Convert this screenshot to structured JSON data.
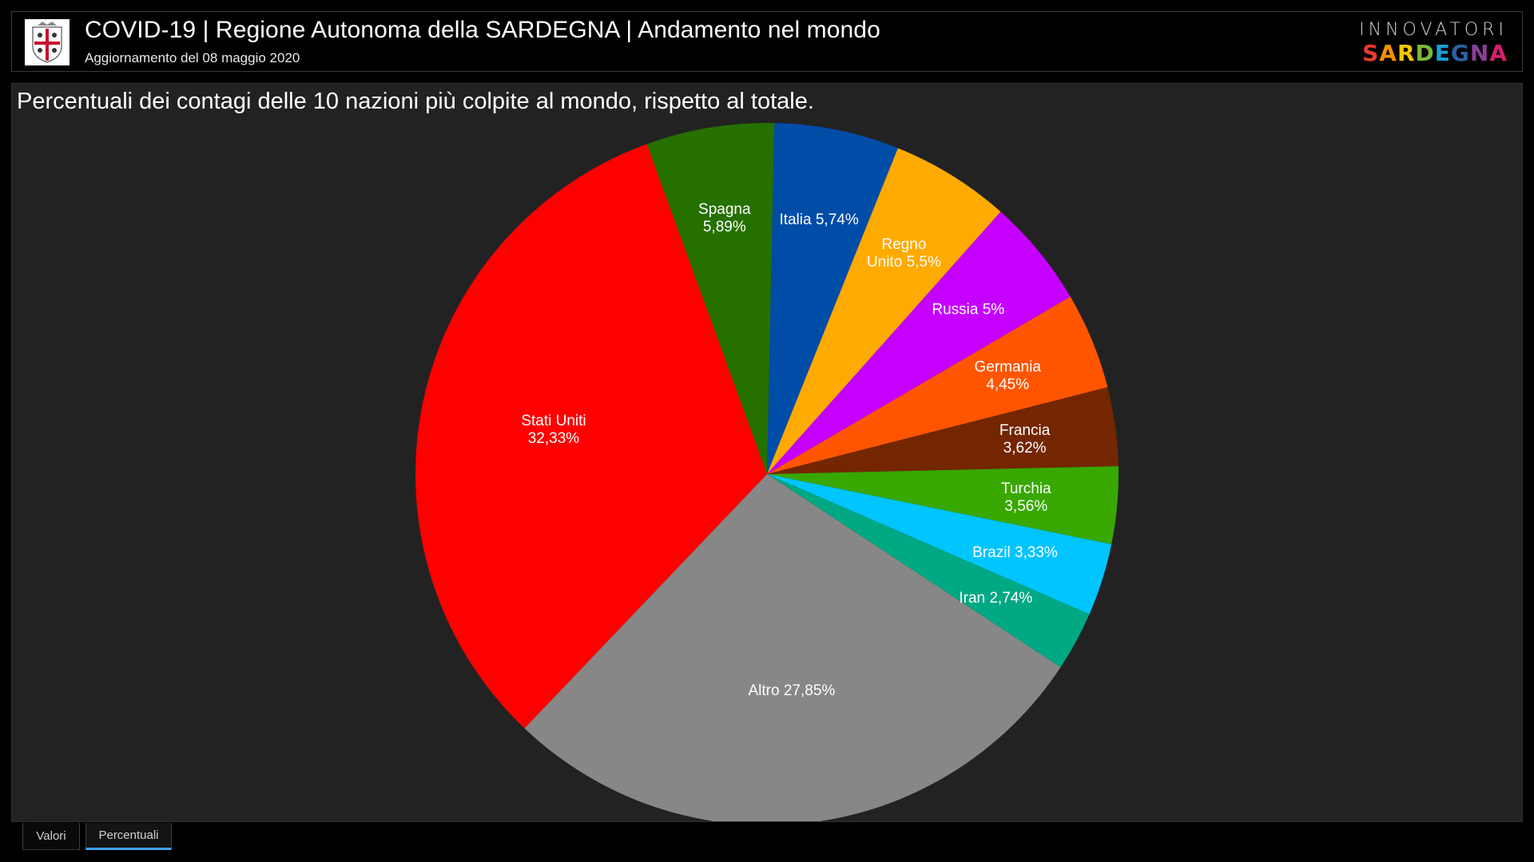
{
  "header": {
    "title": "COVID-19 | Regione Autonoma della SARDEGNA | Andamento nel mondo",
    "subtitle": "Aggiornamento del 08 maggio 2020",
    "logo_top": "INNOVATORI",
    "logo_bottom_letters": [
      {
        "ch": "S",
        "color": "#e63b2e"
      },
      {
        "ch": "A",
        "color": "#f39200"
      },
      {
        "ch": "R",
        "color": "#f2c500"
      },
      {
        "ch": "D",
        "color": "#7bb83b"
      },
      {
        "ch": "E",
        "color": "#1a9fd9"
      },
      {
        "ch": "G",
        "color": "#2c5fa8"
      },
      {
        "ch": "N",
        "color": "#8a3f97"
      },
      {
        "ch": "A",
        "color": "#d6206f"
      }
    ]
  },
  "panel": {
    "title": "Percentuali dei contagi delle 10 nazioni più colpite al mondo, rispetto al totale."
  },
  "chart_data": {
    "type": "pie",
    "title": "Percentuali dei contagi delle 10 nazioni più colpite al mondo, rispetto al totale.",
    "unit": "%",
    "start_angle_deg": -20,
    "direction": "clockwise",
    "slices": [
      {
        "name": "Spagna",
        "value": 5.89,
        "label_lines": [
          "Spagna",
          "5,89%"
        ],
        "color": "#267000"
      },
      {
        "name": "Italia",
        "value": 5.74,
        "label_lines": [
          "Italia 5,74%"
        ],
        "color": "#004da8"
      },
      {
        "name": "Regno Unito",
        "value": 5.5,
        "label_lines": [
          "Regno",
          "Unito 5,5%"
        ],
        "color": "#ffaa00"
      },
      {
        "name": "Russia",
        "value": 5,
        "label_lines": [
          "Russia 5%"
        ],
        "color": "#c500ff"
      },
      {
        "name": "Germania",
        "value": 4.45,
        "label_lines": [
          "Germania",
          "4,45%"
        ],
        "color": "#ff5500"
      },
      {
        "name": "Francia",
        "value": 3.62,
        "label_lines": [
          "Francia",
          "3,62%"
        ],
        "color": "#732600"
      },
      {
        "name": "Turchia",
        "value": 3.56,
        "label_lines": [
          "Turchia",
          "3,56%"
        ],
        "color": "#38a800"
      },
      {
        "name": "Brazil",
        "value": 3.33,
        "label_lines": [
          "Brazil 3,33%"
        ],
        "color": "#00c5ff"
      },
      {
        "name": "Iran",
        "value": 2.74,
        "label_lines": [
          "Iran 2,74%"
        ],
        "color": "#00a884"
      },
      {
        "name": "Altro",
        "value": 27.85,
        "label_lines": [
          "Altro 27,85%"
        ],
        "color": "#878787"
      },
      {
        "name": "Stati Uniti",
        "value": 32.33,
        "label_lines": [
          "Stati Uniti",
          "32,33%"
        ],
        "color": "#ff0000"
      }
    ]
  },
  "tabs": [
    {
      "label": "Valori",
      "active": false
    },
    {
      "label": "Percentuali",
      "active": true
    }
  ]
}
